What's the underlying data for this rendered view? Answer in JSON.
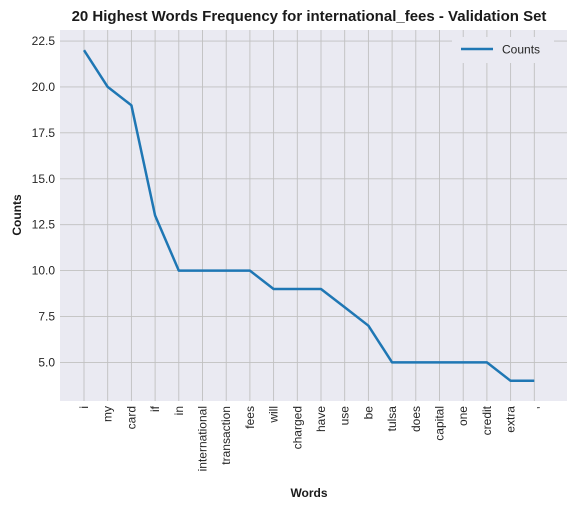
{
  "chart_data": {
    "type": "line",
    "title": "20 Highest Words Frequency for international_fees - Validation Set",
    "xlabel": "Words",
    "ylabel": "Counts",
    "categories": [
      "i",
      "my",
      "card",
      "if",
      "in",
      "international",
      "transaction",
      "fees",
      "will",
      "charged",
      "have",
      "use",
      "be",
      "tulsa",
      "does",
      "capital",
      "one",
      "credit",
      "extra",
      ","
    ],
    "series": [
      {
        "name": "Counts",
        "values": [
          22,
          20,
          19,
          13,
          10,
          10,
          10,
          10,
          9,
          9,
          9,
          8,
          7,
          5,
          5,
          5,
          5,
          5,
          4,
          4
        ]
      }
    ],
    "ylim": [
      2.9,
      23.1
    ],
    "yticks": [
      5.0,
      7.5,
      10.0,
      12.5,
      15.0,
      17.5,
      20.0,
      22.5
    ],
    "yticklabels": [
      "5.0",
      "7.5",
      "10.0",
      "12.5",
      "15.0",
      "17.5",
      "20.0",
      "22.5"
    ],
    "grid": true,
    "legend": "top-right",
    "colors": {
      "line": "#1f77b4",
      "plot_bg": "#eaeaf2",
      "grid": "#c0c0c0"
    }
  }
}
